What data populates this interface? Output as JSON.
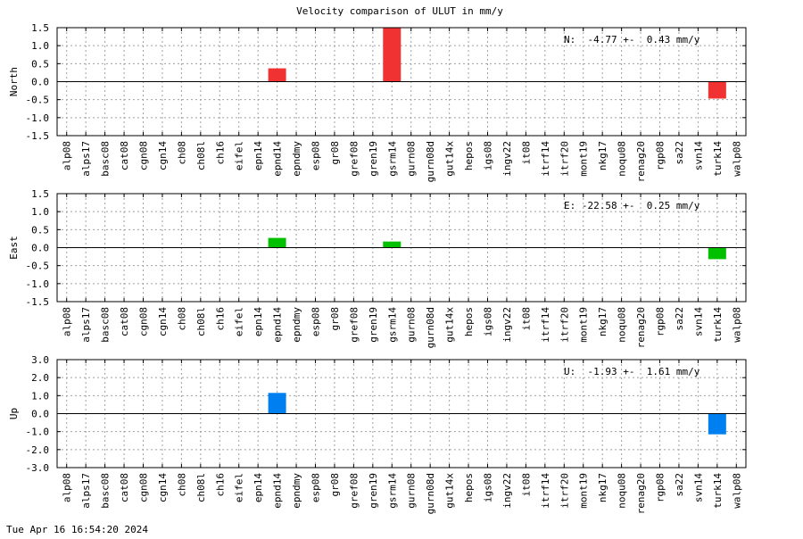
{
  "title": "Velocity comparison of ULUT in mm/y",
  "timestamp": "Tue Apr 16 16:54:20 2024",
  "chart_data": [
    {
      "type": "bar",
      "ylabel": "North",
      "annotation": "N:  -4.77 +-  0.43 mm/y",
      "ylim": [
        -1.5,
        1.5
      ],
      "yticks": [
        "1.5",
        "1.0",
        "0.5",
        "0.0",
        "-0.5",
        "-1.0",
        "-1.5"
      ],
      "color": "#f03232",
      "grid": true,
      "categories": [
        "alp08",
        "alps17",
        "basc08",
        "cat08",
        "cgn08",
        "cgn14",
        "ch08",
        "ch08l",
        "ch16",
        "eifel",
        "epn14",
        "epnd14",
        "epndmy",
        "esp08",
        "gr08",
        "gref08",
        "gren19",
        "gsrm14",
        "gurn08",
        "gurn08d",
        "gut14x",
        "hepos",
        "igs08",
        "ingv22",
        "it08",
        "itrf14",
        "itrf20",
        "mont19",
        "nkg17",
        "noqu08",
        "renag20",
        "rgp08",
        "sa22",
        "svn14",
        "turk14",
        "walp08"
      ],
      "values": [
        0,
        0,
        0,
        0,
        0,
        0,
        0,
        0,
        0,
        0,
        0,
        0.37,
        0,
        0,
        0,
        0,
        0,
        1.5,
        0,
        0,
        0,
        0,
        0,
        0,
        0,
        0,
        0,
        0,
        0,
        0,
        0,
        0,
        0,
        0,
        -0.47,
        0
      ]
    },
    {
      "type": "bar",
      "ylabel": "East",
      "annotation": "E: -22.58 +-  0.25 mm/y",
      "ylim": [
        -1.5,
        1.5
      ],
      "yticks": [
        "1.5",
        "1.0",
        "0.5",
        "0.0",
        "-0.5",
        "-1.0",
        "-1.5"
      ],
      "color": "#00c000",
      "grid": true,
      "categories": [
        "alp08",
        "alps17",
        "basc08",
        "cat08",
        "cgn08",
        "cgn14",
        "ch08",
        "ch08l",
        "ch16",
        "eifel",
        "epn14",
        "epnd14",
        "epndmy",
        "esp08",
        "gr08",
        "gref08",
        "gren19",
        "gsrm14",
        "gurn08",
        "gurn08d",
        "gut14x",
        "hepos",
        "igs08",
        "ingv22",
        "it08",
        "itrf14",
        "itrf20",
        "mont19",
        "nkg17",
        "noqu08",
        "renag20",
        "rgp08",
        "sa22",
        "svn14",
        "turk14",
        "walp08"
      ],
      "values": [
        0,
        0,
        0,
        0,
        0,
        0,
        0,
        0,
        0,
        0,
        0,
        0.27,
        0,
        0,
        0,
        0,
        0,
        0.17,
        0,
        0,
        0,
        0,
        0,
        0,
        0,
        0,
        0,
        0,
        0,
        0,
        0,
        0,
        0,
        0,
        -0.32,
        0
      ]
    },
    {
      "type": "bar",
      "ylabel": "Up",
      "annotation": "U:  -1.93 +-  1.61 mm/y",
      "ylim": [
        -3,
        3
      ],
      "yticks": [
        "3.0",
        "2.0",
        "1.0",
        "0.0",
        "-1.0",
        "-2.0",
        "-3.0"
      ],
      "color": "#0080f0",
      "grid": true,
      "categories": [
        "alp08",
        "alps17",
        "basc08",
        "cat08",
        "cgn08",
        "cgn14",
        "ch08",
        "ch08l",
        "ch16",
        "eifel",
        "epn14",
        "epnd14",
        "epndmy",
        "esp08",
        "gr08",
        "gref08",
        "gren19",
        "gsrm14",
        "gurn08",
        "gurn08d",
        "gut14x",
        "hepos",
        "igs08",
        "ingv22",
        "it08",
        "itrf14",
        "itrf20",
        "mont19",
        "nkg17",
        "noqu08",
        "renag20",
        "rgp08",
        "sa22",
        "svn14",
        "turk14",
        "walp08"
      ],
      "values": [
        0,
        0,
        0,
        0,
        0,
        0,
        0,
        0,
        0,
        0,
        0,
        1.15,
        0,
        0,
        0,
        0,
        0,
        0,
        0,
        0,
        0,
        0,
        0,
        0,
        0,
        0,
        0,
        0,
        0,
        0,
        0,
        0,
        0,
        0,
        -1.15,
        0
      ]
    }
  ]
}
